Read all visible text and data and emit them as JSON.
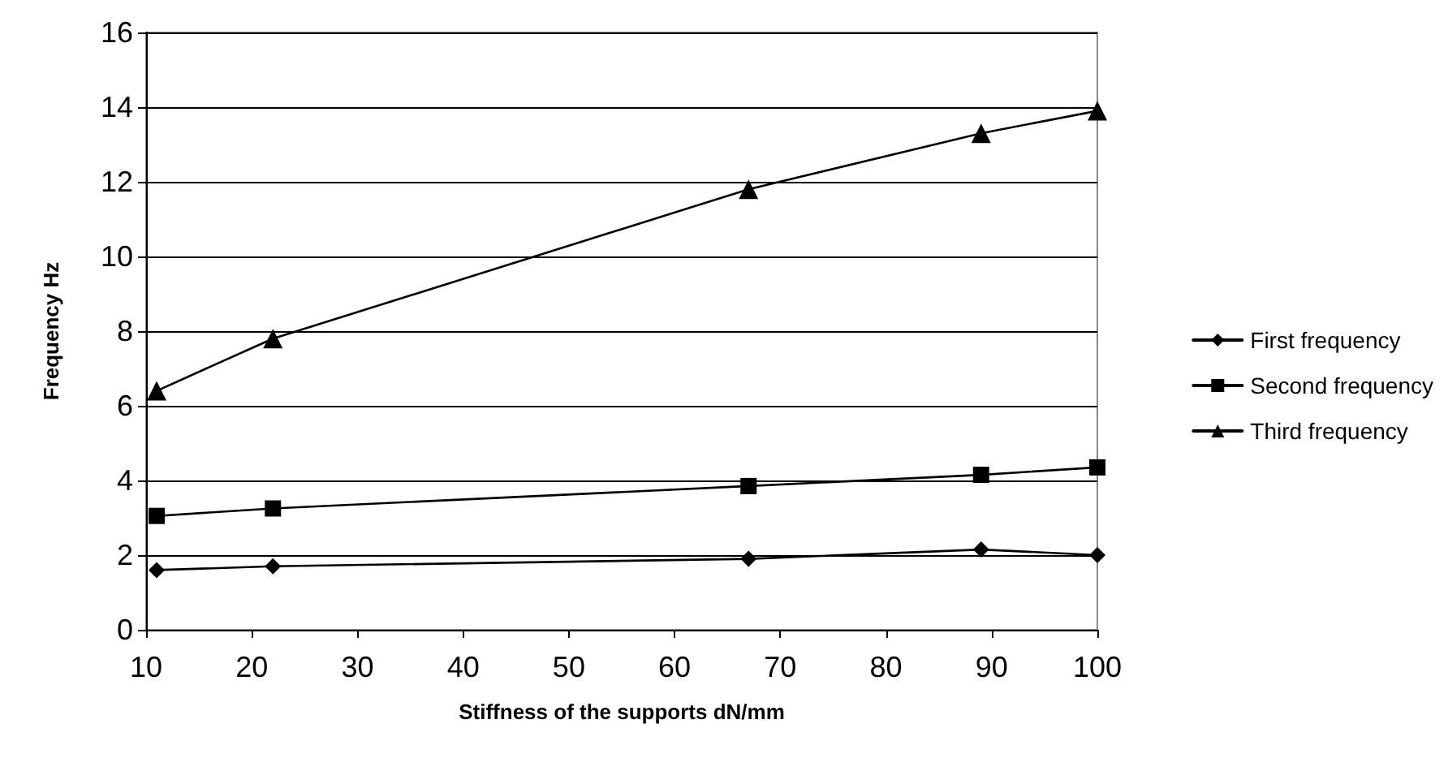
{
  "chart_data": {
    "type": "line",
    "xlabel": "Stiffness of the supports dN/mm",
    "ylabel": "Frequency Hz",
    "x": [
      11,
      22,
      67,
      89,
      100
    ],
    "series": [
      {
        "name": "First frequency",
        "color": "#000000",
        "marker": "diamond",
        "values": [
          1.6,
          1.7,
          1.9,
          2.15,
          2.0
        ]
      },
      {
        "name": "Second frequency",
        "color": "#000000",
        "marker": "square",
        "values": [
          3.05,
          3.25,
          3.85,
          4.15,
          4.35
        ]
      },
      {
        "name": "Third frequency",
        "color": "#000000",
        "marker": "triangle",
        "values": [
          6.4,
          7.8,
          11.8,
          13.3,
          13.9
        ]
      }
    ],
    "xlim": [
      10,
      100
    ],
    "xticks": [
      10,
      20,
      30,
      40,
      50,
      60,
      70,
      80,
      90,
      100
    ],
    "ylim": [
      0,
      16
    ],
    "yticks": [
      0,
      2,
      4,
      6,
      8,
      10,
      12,
      14,
      16
    ],
    "grid": "y",
    "legend": "right",
    "line_style": "solid"
  }
}
